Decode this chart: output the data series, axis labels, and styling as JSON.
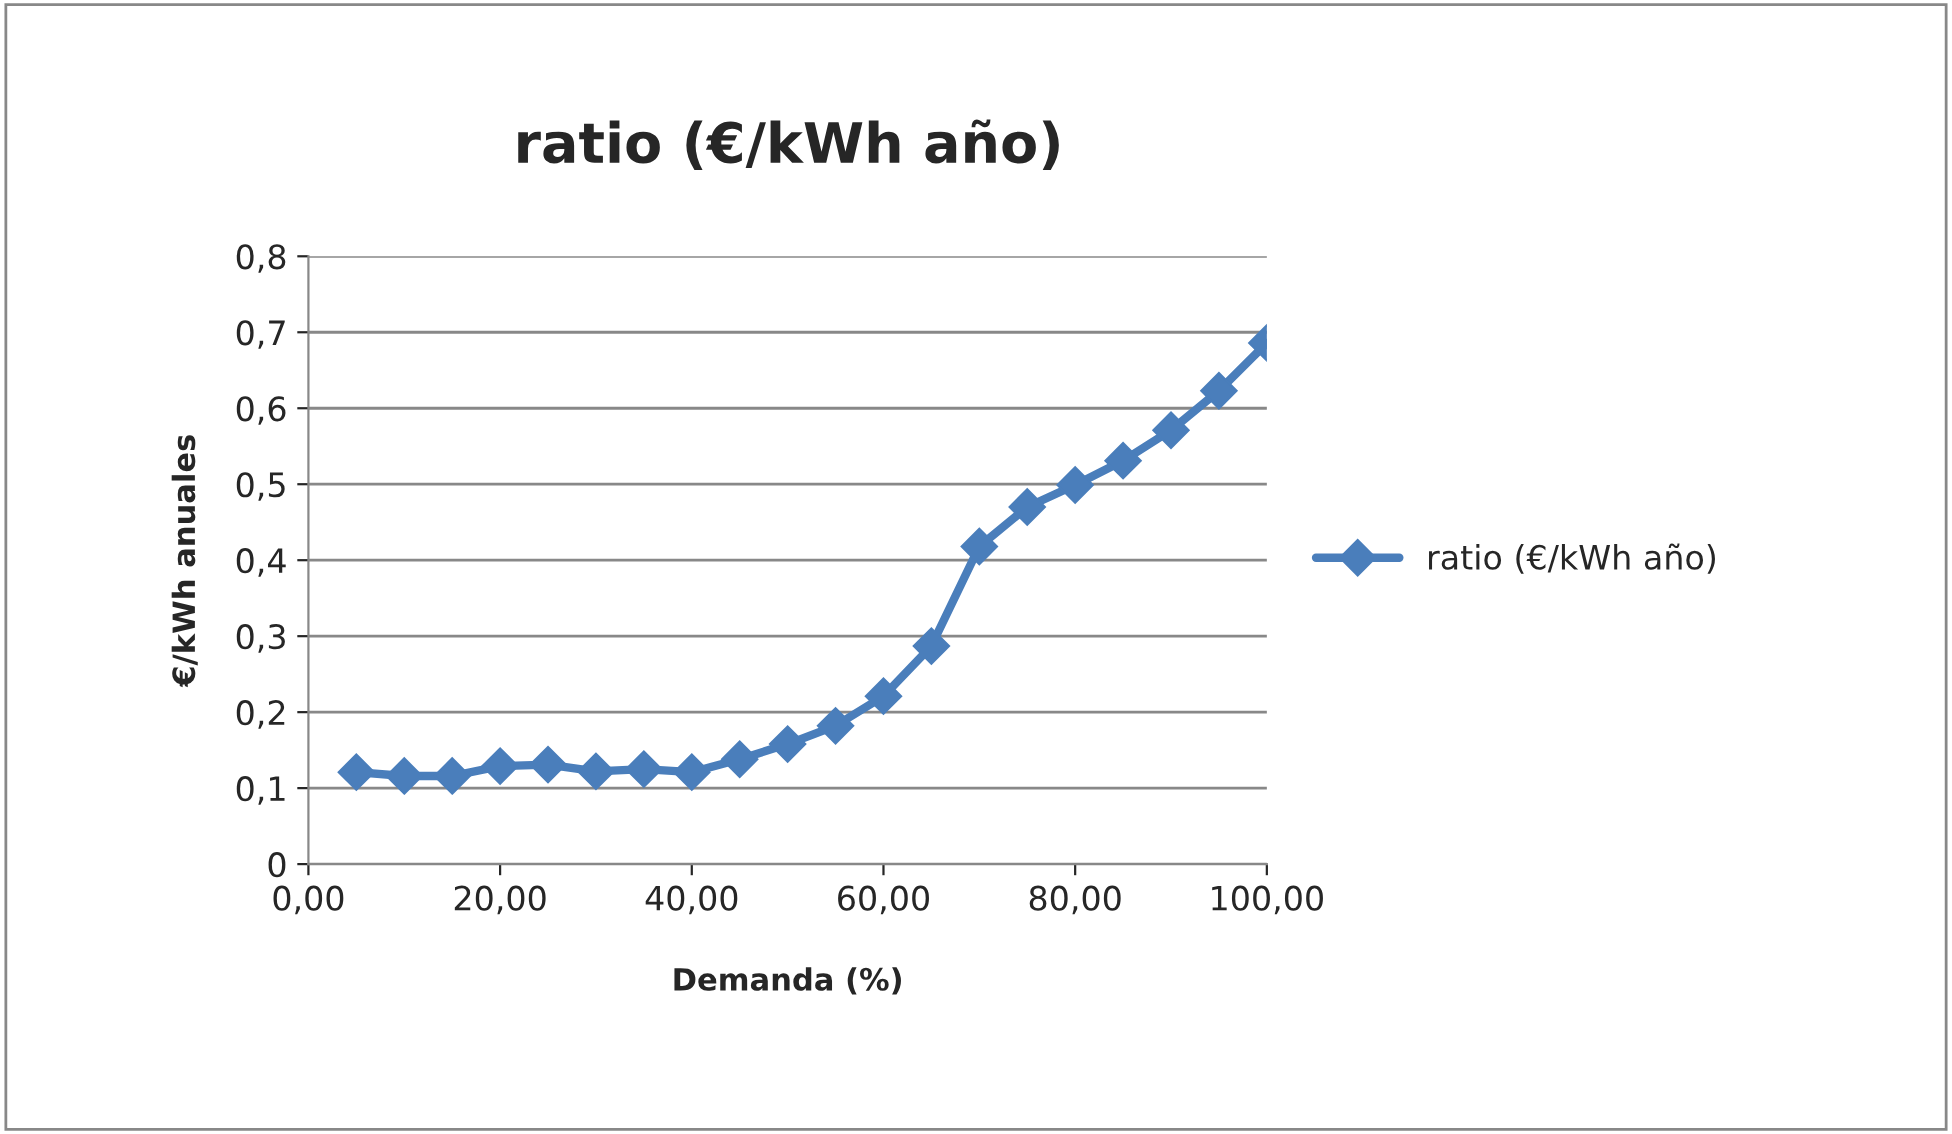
{
  "chart_data": {
    "type": "line",
    "title": "ratio (€/kWh año)",
    "xlabel": "Demanda (%)",
    "ylabel": "€/kWh anuales",
    "x": [
      5,
      10,
      15,
      20,
      25,
      30,
      35,
      40,
      45,
      50,
      55,
      60,
      65,
      70,
      75,
      80,
      85,
      90,
      95,
      100
    ],
    "series": [
      {
        "name": "ratio (€/kWh año)",
        "color": "#4a7ebb",
        "values": [
          0.121,
          0.116,
          0.116,
          0.129,
          0.131,
          0.122,
          0.125,
          0.121,
          0.138,
          0.158,
          0.182,
          0.221,
          0.287,
          0.418,
          0.47,
          0.499,
          0.531,
          0.571,
          0.623,
          0.686
        ]
      }
    ],
    "xlim": [
      0,
      100
    ],
    "ylim": [
      0,
      0.8
    ],
    "xticks": [
      {
        "value": 0,
        "label": "0,00"
      },
      {
        "value": 20,
        "label": "20,00"
      },
      {
        "value": 40,
        "label": "40,00"
      },
      {
        "value": 60,
        "label": "60,00"
      },
      {
        "value": 80,
        "label": "80,00"
      },
      {
        "value": 100,
        "label": "100,00"
      }
    ],
    "yticks": [
      0,
      {
        "value": 0.1,
        "label": "0,1"
      },
      {
        "value": 0.2,
        "label": "0,2"
      },
      {
        "value": 0.3,
        "label": "0,3"
      },
      {
        "value": 0.4,
        "label": "0,4"
      },
      {
        "value": 0.5,
        "label": "0,5"
      },
      {
        "value": 0.6,
        "label": "0,6"
      },
      {
        "value": 0.7,
        "label": "0,7"
      },
      {
        "value": 0.8,
        "label": "0,8"
      }
    ],
    "grid": "y",
    "legend": "right",
    "marker": "diamond",
    "line_style": "solid"
  }
}
